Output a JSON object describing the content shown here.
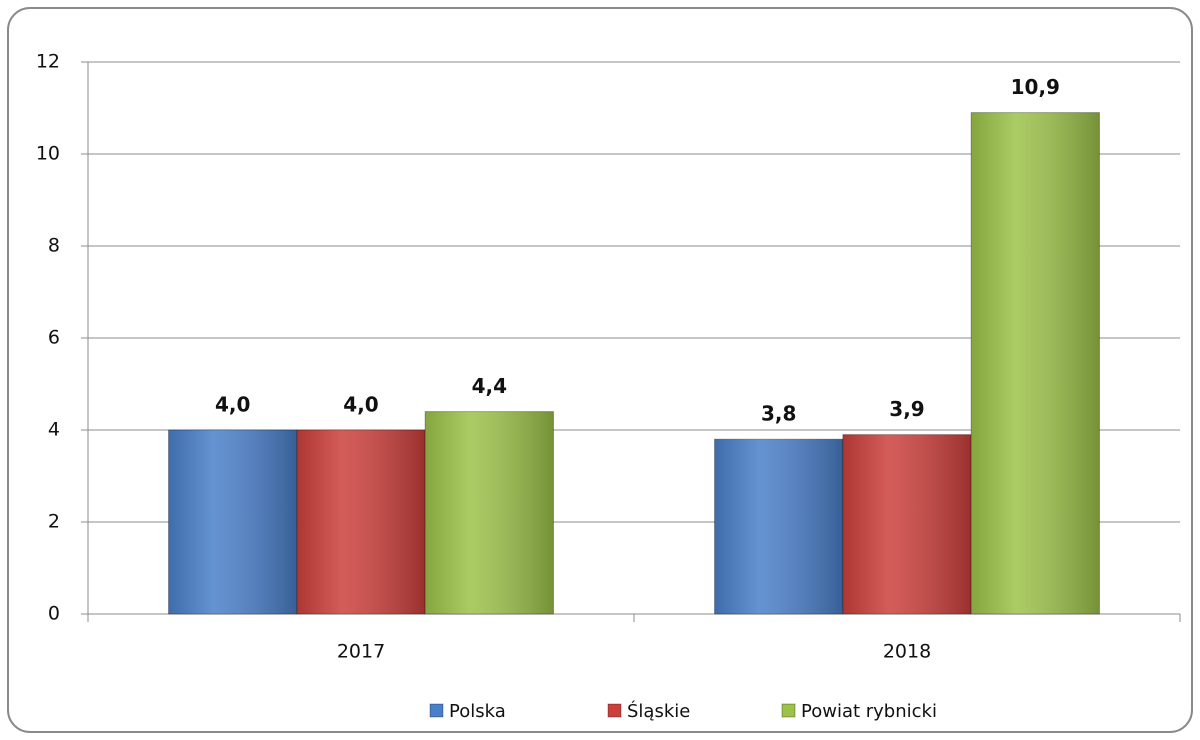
{
  "chart_data": {
    "type": "bar",
    "categories": [
      "2017",
      "2018"
    ],
    "series": [
      {
        "name": "Polska",
        "color": "#4a7fc9",
        "values": [
          4.0,
          3.8
        ],
        "value_labels": [
          "4,0",
          "3,8"
        ]
      },
      {
        "name": "Śląskie",
        "color": "#cc403c",
        "values": [
          4.0,
          3.9
        ],
        "value_labels": [
          "4,0",
          "3,9"
        ]
      },
      {
        "name": "Powiat rybnicki",
        "color": "#9cc24a",
        "values": [
          4.4,
          10.9
        ],
        "value_labels": [
          "4,4",
          "10,9"
        ]
      }
    ],
    "ylim": [
      0,
      12
    ],
    "yticks": [
      0,
      2,
      4,
      6,
      8,
      10,
      12
    ],
    "grid": true,
    "legend": "bottom"
  }
}
